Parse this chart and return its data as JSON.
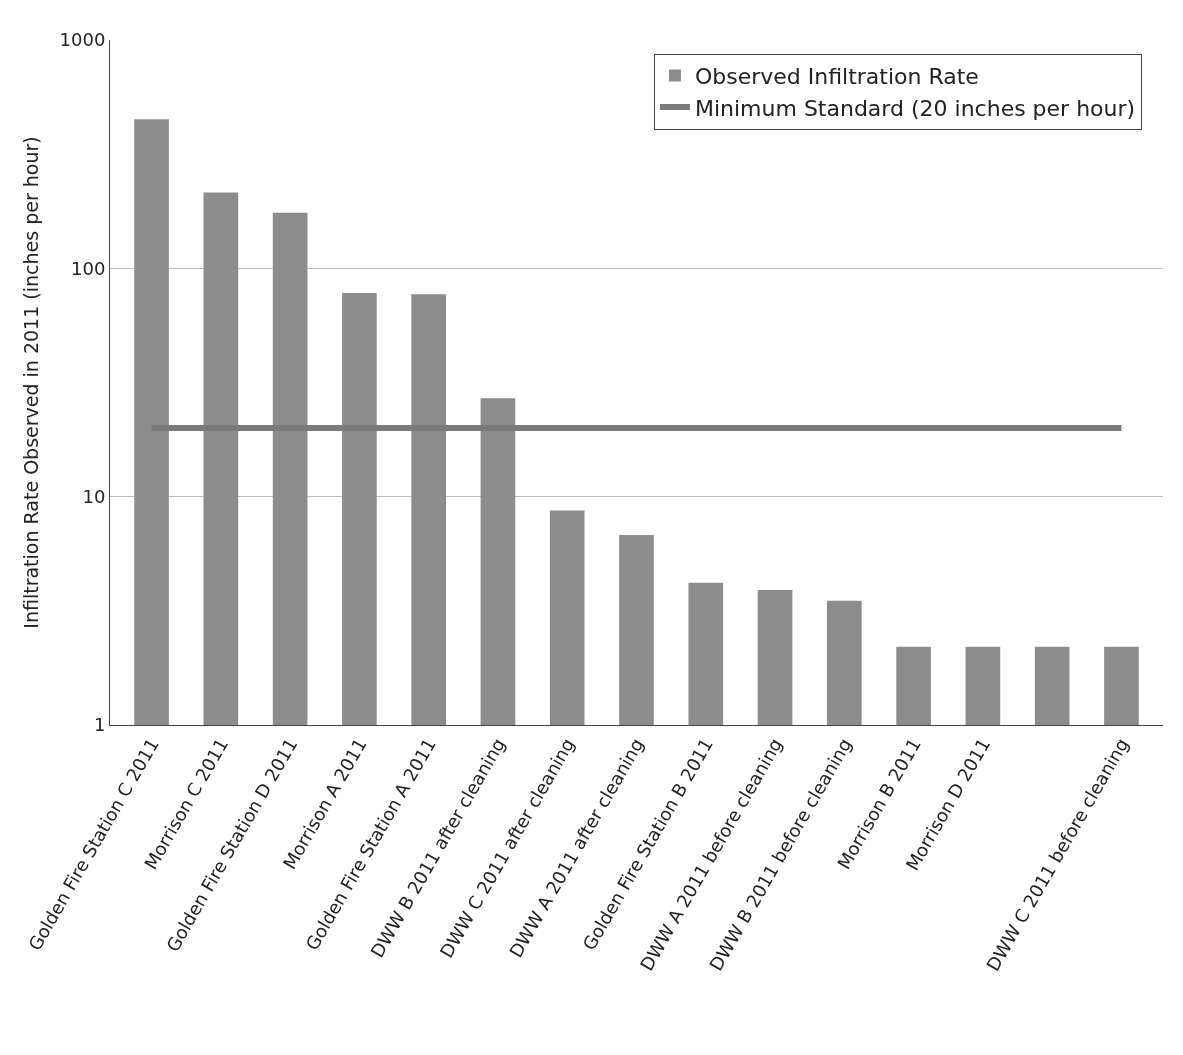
{
  "chart_data": {
    "type": "bar",
    "ylabel": "Infiltration Rate Observed in 2011 (inches per hour)",
    "categories": [
      "Golden Fire Station C 2011",
      "Morrison C 2011",
      "Golden Fire Station D 2011",
      "Morrison A 2011",
      "Golden Fire Station A 2011",
      "DWW B 2011 after cleaning",
      "DWW C 2011 after cleaning",
      "DWW A 2011 after cleaning",
      "Golden Fire Station B 2011",
      "DWW A 2011 before cleaning",
      "DWW B 2011 before cleaning",
      "Morrison B 2011",
      "Morrison D 2011",
      null,
      "DWW C 2011 before cleaning"
    ],
    "series": [
      {
        "name": "Observed Infiltration Rate",
        "color": "#8c8c8c",
        "values": [
          450,
          215,
          175,
          78,
          77,
          27,
          8.7,
          6.8,
          4.2,
          3.9,
          3.5,
          2.2,
          2.2,
          2.2,
          2.2
        ]
      },
      {
        "name": "Minimum Standard (20 inches per hour)",
        "type": "line",
        "color": "#7a7a7a",
        "values": [
          20,
          20,
          20,
          20,
          20,
          20,
          20,
          20,
          20,
          20,
          20,
          20,
          20,
          20,
          20
        ]
      }
    ],
    "log": true,
    "ylim": [
      1,
      1000
    ],
    "yticks": [
      1,
      10,
      100,
      1000
    ],
    "grid": "y",
    "legend": "top right",
    "marker": "none",
    "line_style": "solid"
  }
}
